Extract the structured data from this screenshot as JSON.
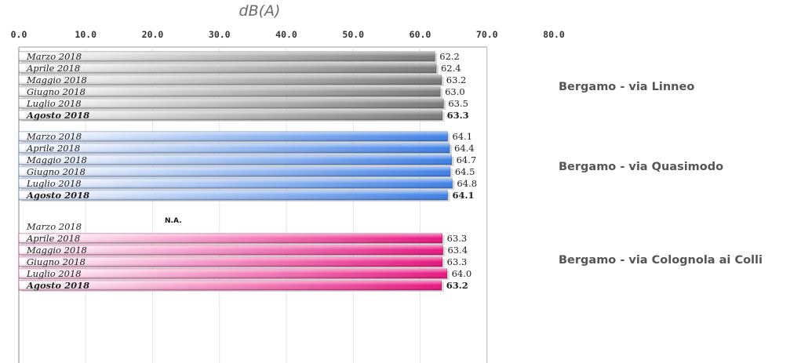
{
  "chart_data": {
    "type": "bar",
    "orientation": "horizontal",
    "xlabel": "dB(A)",
    "xlim": [
      0,
      80
    ],
    "xticks": [
      "0.0",
      "10.0",
      "20.0",
      "30.0",
      "40.0",
      "50.0",
      "60.0",
      "70.0",
      "80.0"
    ],
    "grid": true,
    "groups": [
      {
        "name": "Bergamo - via Linneo",
        "color": "#7a7a7a",
        "bars": [
          {
            "label": "Marzo 2018",
            "value": 62.2,
            "value_label": "62.2",
            "bold": false
          },
          {
            "label": "Aprile 2018",
            "value": 62.4,
            "value_label": "62.4",
            "bold": false
          },
          {
            "label": "Maggio 2018",
            "value": 63.2,
            "value_label": "63.2",
            "bold": false
          },
          {
            "label": "Giugno 2018",
            "value": 63.0,
            "value_label": "63.0",
            "bold": false
          },
          {
            "label": "Luglio 2018",
            "value": 63.5,
            "value_label": "63.5",
            "bold": false
          },
          {
            "label": "Agosto 2018",
            "value": 63.3,
            "value_label": "63.3",
            "bold": true
          }
        ]
      },
      {
        "name": "Bergamo - via Quasimodo",
        "color": "#3d7fe6",
        "bars": [
          {
            "label": "Marzo 2018",
            "value": 64.1,
            "value_label": "64.1",
            "bold": false
          },
          {
            "label": "Aprile 2018",
            "value": 64.4,
            "value_label": "64.4",
            "bold": false
          },
          {
            "label": "Maggio 2018",
            "value": 64.7,
            "value_label": "64.7",
            "bold": false
          },
          {
            "label": "Giugno 2018",
            "value": 64.5,
            "value_label": "64.5",
            "bold": false
          },
          {
            "label": "Luglio 2018",
            "value": 64.8,
            "value_label": "64.8",
            "bold": false
          },
          {
            "label": "Agosto 2018",
            "value": 64.1,
            "value_label": "64.1",
            "bold": true
          }
        ]
      },
      {
        "name": "Bergamo - via Colognola ai Colli",
        "color": "#e8157f",
        "bars": [
          {
            "label": "Marzo 2018",
            "value": null,
            "value_label": "N.A.",
            "bold": false
          },
          {
            "label": "Aprile 2018",
            "value": 63.3,
            "value_label": "63.3",
            "bold": false
          },
          {
            "label": "Maggio 2018",
            "value": 63.4,
            "value_label": "63.4",
            "bold": false
          },
          {
            "label": "Giugno 2018",
            "value": 63.3,
            "value_label": "63.3",
            "bold": false
          },
          {
            "label": "Luglio 2018",
            "value": 64.0,
            "value_label": "64.0",
            "bold": false
          },
          {
            "label": "Agosto 2018",
            "value": 63.2,
            "value_label": "63.2",
            "bold": true
          }
        ]
      }
    ]
  }
}
